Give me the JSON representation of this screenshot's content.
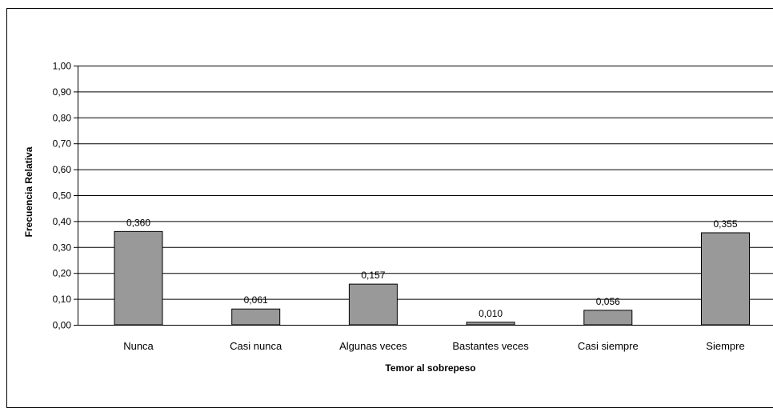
{
  "chart_data": {
    "type": "bar",
    "xlabel": "Temor al sobrepeso",
    "ylabel": "Frecuencia Relativa",
    "categories": [
      "Nunca",
      "Casi nunca",
      "Algunas veces",
      "Bastantes veces",
      "Casi siempre",
      "Siempre"
    ],
    "values": [
      0.36,
      0.061,
      0.157,
      0.01,
      0.056,
      0.355
    ],
    "value_labels": [
      "0,360",
      "0,061",
      "0,157",
      "0,010",
      "0,056",
      "0,355"
    ],
    "ylim": [
      0,
      1
    ],
    "yticks": [
      0,
      0.1,
      0.2,
      0.3,
      0.4,
      0.5,
      0.6,
      0.7,
      0.8,
      0.9,
      1.0
    ],
    "ytick_labels": [
      "0,00",
      "0,10",
      "0,20",
      "0,30",
      "0,40",
      "0,50",
      "0,60",
      "0,70",
      "0,80",
      "0,90",
      "1,00"
    ],
    "grid": true,
    "bar_color": "#999999",
    "legend": "none"
  }
}
